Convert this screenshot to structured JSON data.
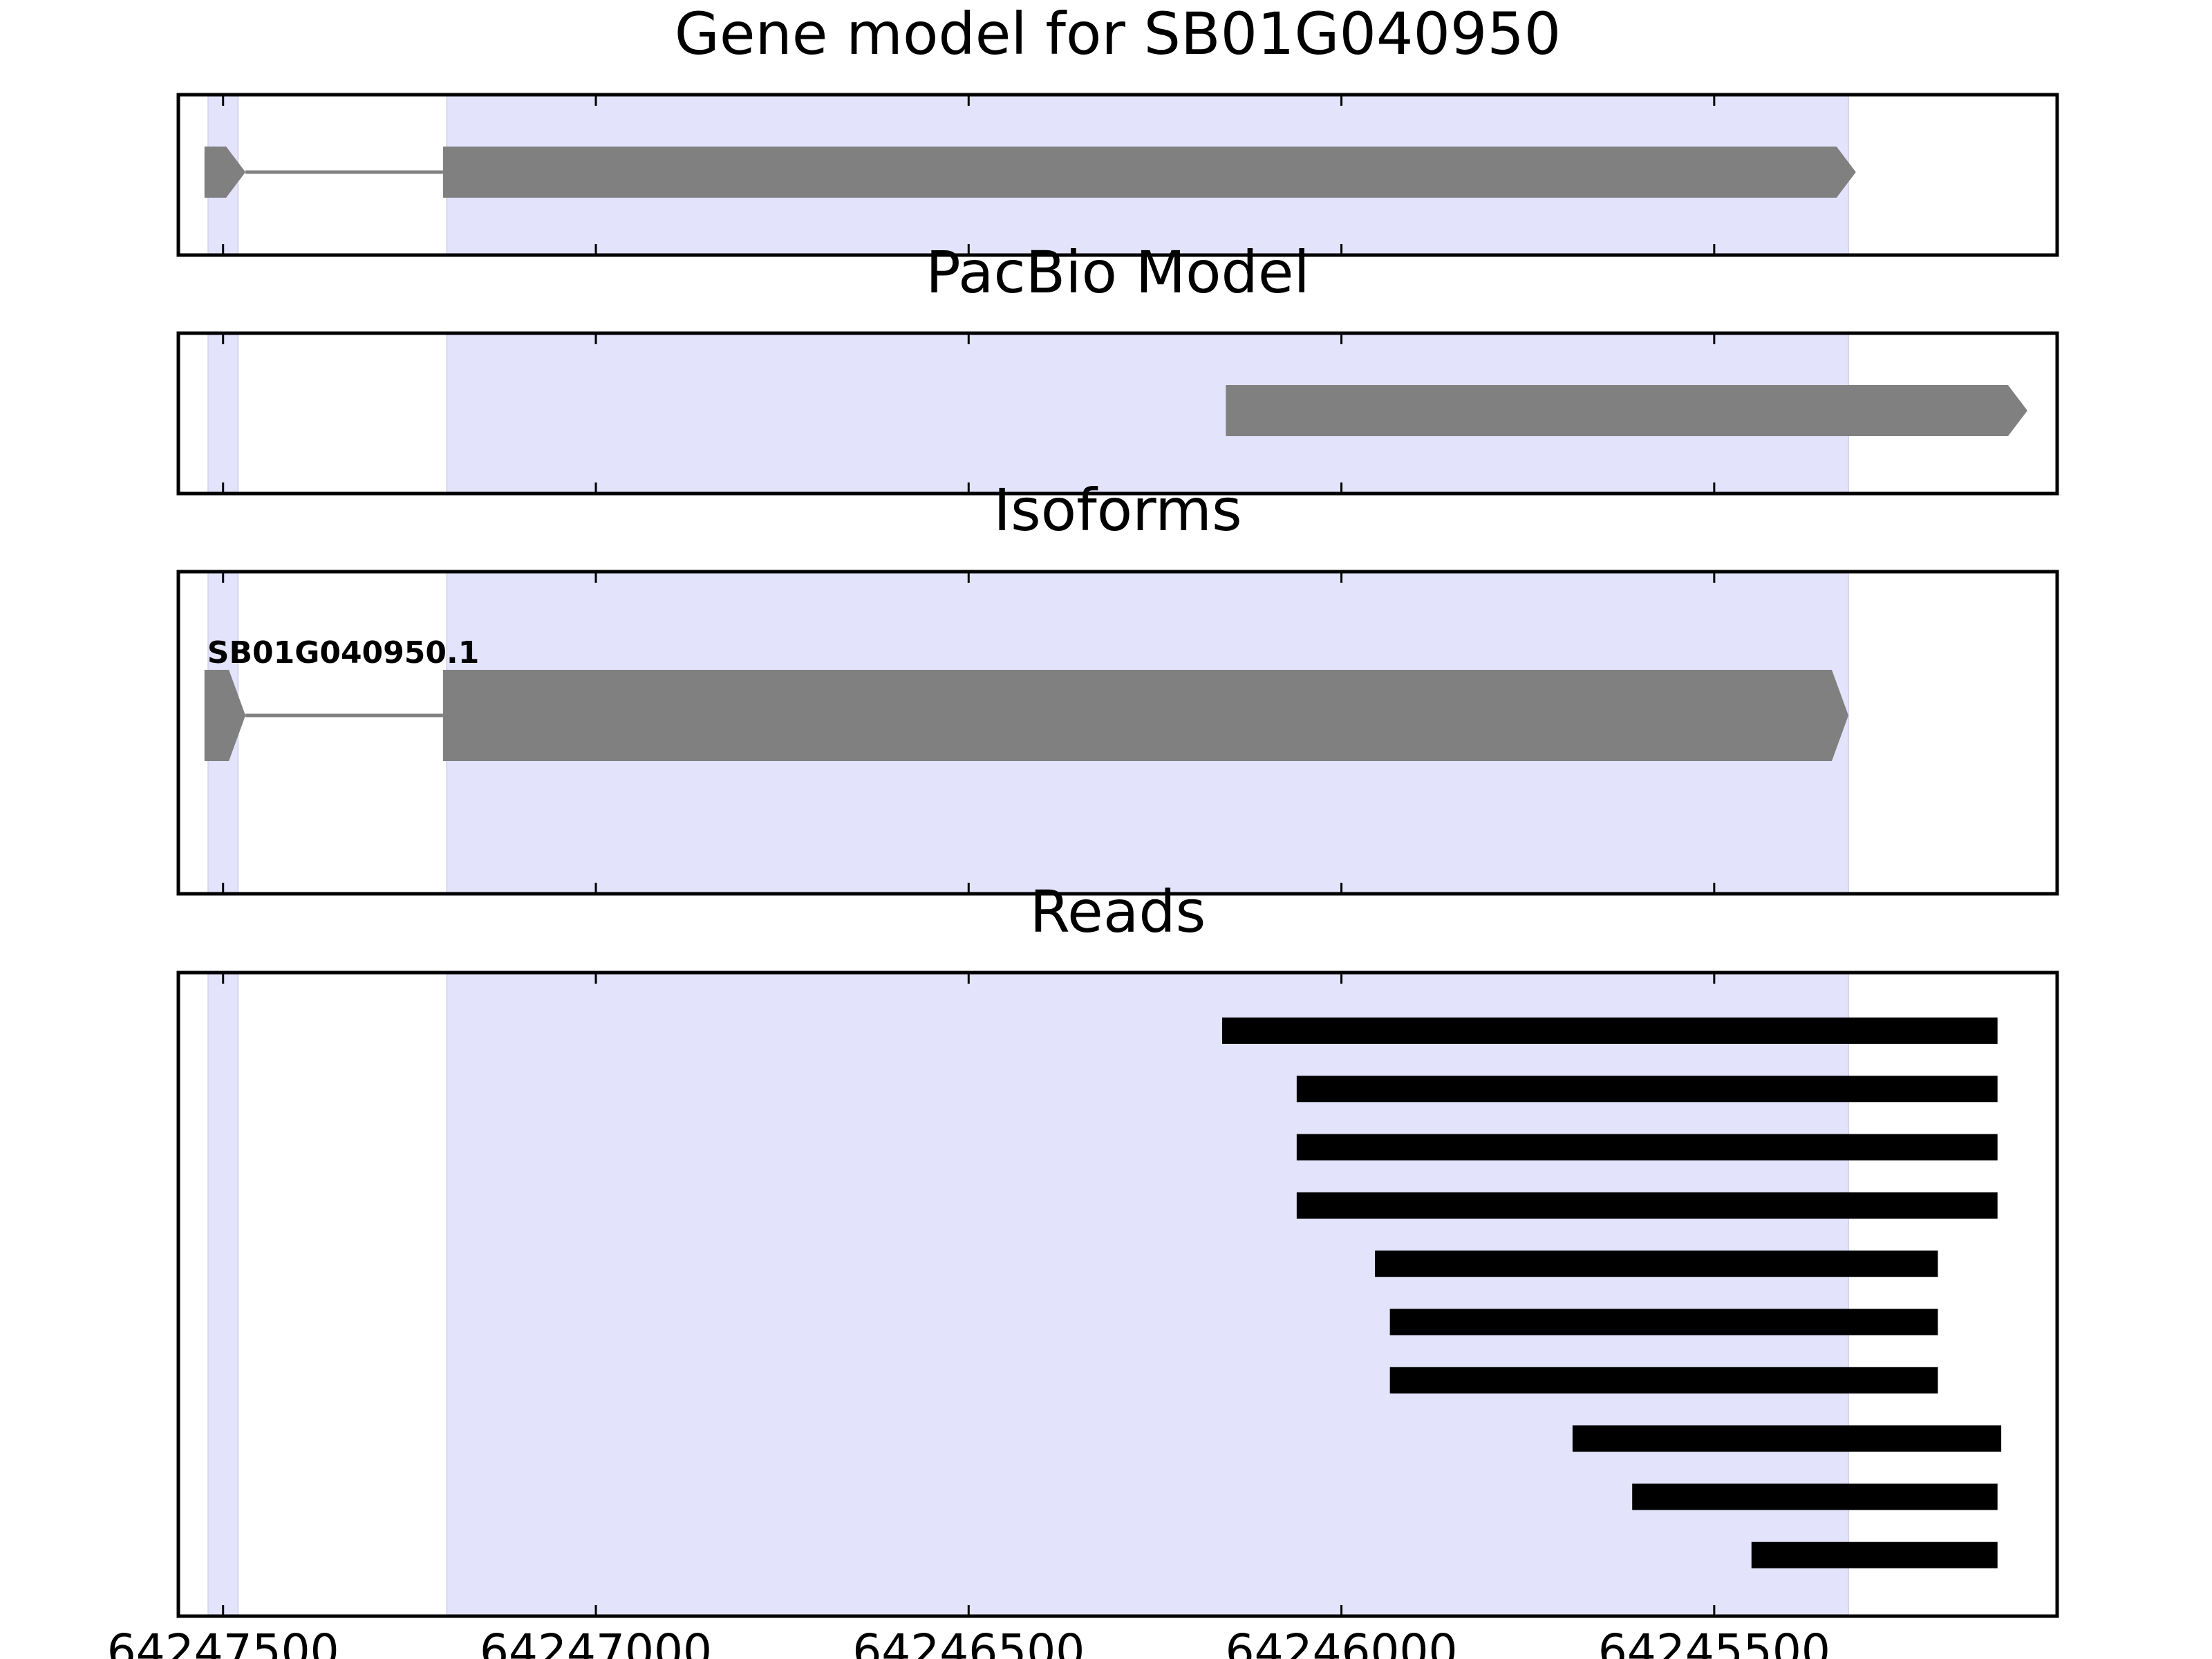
{
  "chart_data": {
    "type": "gene_track",
    "xaxis": {
      "reversed": true,
      "xlim": [
        64247560,
        64245040
      ],
      "ticks": [
        64247500,
        64247000,
        64246500,
        64246000,
        64245500
      ],
      "tick_labels": [
        "64247500",
        "64247000",
        "64246500",
        "64246000",
        "64245500"
      ]
    },
    "highlight_color": "#e3e3fc",
    "highlight_regions": [
      {
        "start": 64247520,
        "end": 64247480
      },
      {
        "start": 64247200,
        "end": 64245320
      }
    ],
    "feature_color": "#808080",
    "read_color": "#000000",
    "panels": [
      {
        "id": "gene-model",
        "title": "Gene model for SB01G040950",
        "features": [
          {
            "label": "",
            "exons": [
              {
                "start": 64247525,
                "end": 64247470
              },
              {
                "start": 64247205,
                "end": 64245310
              }
            ]
          }
        ]
      },
      {
        "id": "pacbio-model",
        "title": "PacBio Model",
        "features": [
          {
            "label": "",
            "exons": [
              {
                "start": 64246155,
                "end": 64245080
              }
            ]
          }
        ]
      },
      {
        "id": "isoforms",
        "title": "Isoforms",
        "features": [
          {
            "label": "SB01G040950.1",
            "exons": [
              {
                "start": 64247525,
                "end": 64247470
              },
              {
                "start": 64247205,
                "end": 64245320
              }
            ]
          }
        ]
      },
      {
        "id": "reads",
        "title": "Reads",
        "reads": [
          {
            "start": 64246160,
            "end": 64245120
          },
          {
            "start": 64246060,
            "end": 64245120
          },
          {
            "start": 64246060,
            "end": 64245120
          },
          {
            "start": 64246060,
            "end": 64245120
          },
          {
            "start": 64245955,
            "end": 64245200
          },
          {
            "start": 64245935,
            "end": 64245200
          },
          {
            "start": 64245935,
            "end": 64245200
          },
          {
            "start": 64245690,
            "end": 64245115
          },
          {
            "start": 64245610,
            "end": 64245120
          },
          {
            "start": 64245450,
            "end": 64245120
          }
        ]
      }
    ]
  }
}
